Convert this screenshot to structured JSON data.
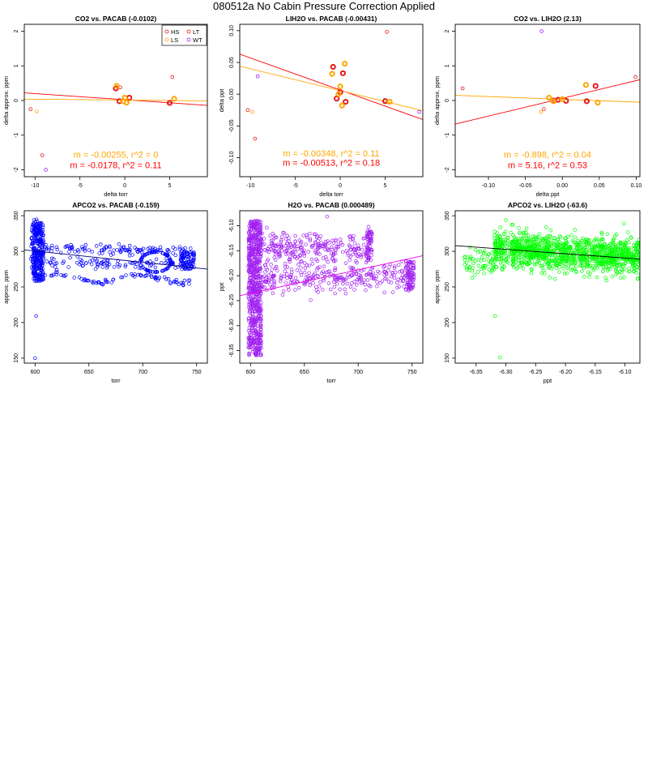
{
  "page": {
    "title": "080512a   No Cabin Pressure Correction Applied"
  },
  "colors": {
    "HS": "#e41a1c",
    "LT": "#e41a1c",
    "LS": "#ffa500",
    "WT": "#a020f0",
    "blue": "#0000ff",
    "purple": "#a020f0",
    "green": "#00ff00",
    "fitRed": "#ff0000",
    "fitOrange": "#ffa500"
  },
  "chart_data": [
    {
      "type": "scatter",
      "title": "CO2 vs. PACAB (-0.0102)",
      "xlabel": "delta torr",
      "ylabel": "delta approx. ppm",
      "xlim": [
        -11.2,
        9.2
      ],
      "ylim": [
        -2.2,
        2.2
      ],
      "xticks": [
        -10,
        -5,
        0,
        5
      ],
      "yticks": [
        -2,
        -1,
        0,
        1,
        2
      ],
      "legend": {
        "position": "top-right",
        "entries": [
          {
            "label": "HS",
            "color": "#e41a1c"
          },
          {
            "label": "LT",
            "color": "#e41a1c"
          },
          {
            "label": "LS",
            "color": "#ffa500"
          },
          {
            "label": "WT",
            "color": "#a020f0"
          }
        ]
      },
      "series": [
        {
          "name": "HS",
          "color": "#e41a1c",
          "thick": true,
          "points": [
            [
              -1.0,
              0.35
            ],
            [
              0.5,
              0.08
            ],
            [
              5.0,
              -0.07
            ],
            [
              -0.6,
              -0.02
            ]
          ]
        },
        {
          "name": "LT",
          "color": "#e41a1c",
          "thick": false,
          "points": [
            [
              -10.5,
              -0.25
            ],
            [
              -9.2,
              -1.58
            ],
            [
              -0.5,
              0.38
            ],
            [
              5.3,
              0.68
            ]
          ]
        },
        {
          "name": "LS",
          "color": "#ffa500",
          "thick": true,
          "points": [
            [
              -0.9,
              0.42
            ],
            [
              0.0,
              0.08
            ],
            [
              0.2,
              -0.06
            ],
            [
              5.5,
              0.05
            ],
            [
              -0.2,
              -0.02
            ]
          ]
        },
        {
          "name": "LS",
          "color": "#ffa500",
          "thick": false,
          "points": [
            [
              -9.8,
              -0.32
            ],
            [
              0.4,
              0.0
            ]
          ]
        },
        {
          "name": "WT",
          "color": "#a020f0",
          "thick": false,
          "points": [
            [
              -8.8,
              -2.0
            ]
          ]
        }
      ],
      "fits": [
        {
          "color": "#ff0000",
          "x": [
            -11.2,
            9.2
          ],
          "y": [
            0.22,
            -0.14
          ]
        },
        {
          "color": "#ffa500",
          "x": [
            -11.2,
            9.2
          ],
          "y": [
            0.04,
            -0.01
          ]
        }
      ],
      "annotations": [
        {
          "text": "m = -0.00255, r^2 = 0",
          "color": "#ffa500",
          "x": 0.5,
          "y": -1.65
        },
        {
          "text": "m = -0.0178, r^2 = 0.11",
          "color": "#ff0000",
          "x": 0.5,
          "y": -1.95
        }
      ]
    },
    {
      "type": "scatter",
      "title": "LIH2O vs. PACAB (-0.00431)",
      "xlabel": "delta torr",
      "ylabel": "delta ppt",
      "xlim": [
        -11.2,
        9.2
      ],
      "ylim": [
        -0.13,
        0.11
      ],
      "xticks": [
        -10,
        -5,
        0,
        5
      ],
      "yticks": [
        -0.1,
        -0.05,
        0.0,
        0.05,
        0.1
      ],
      "ytick_labels": [
        "-0.10",
        "-0.05",
        "0.00",
        "0.05",
        "0.10"
      ],
      "series": [
        {
          "name": "HS",
          "color": "#e41a1c",
          "thick": true,
          "points": [
            [
              -0.8,
              0.043
            ],
            [
              0.3,
              0.033
            ],
            [
              -0.4,
              -0.007
            ],
            [
              0.6,
              -0.012
            ],
            [
              5.0,
              -0.011
            ],
            [
              0.0,
              0.003
            ]
          ]
        },
        {
          "name": "LT",
          "color": "#e41a1c",
          "thick": false,
          "points": [
            [
              5.2,
              0.098
            ],
            [
              -10.3,
              -0.025
            ],
            [
              -9.5,
              -0.07
            ]
          ]
        },
        {
          "name": "LS",
          "color": "#ffa500",
          "thick": true,
          "points": [
            [
              0.5,
              0.048
            ],
            [
              -0.9,
              0.032
            ],
            [
              0.0,
              0.012
            ],
            [
              0.2,
              -0.018
            ],
            [
              5.5,
              -0.012
            ],
            [
              -0.2,
              0.0
            ]
          ]
        },
        {
          "name": "LS",
          "color": "#ffa500",
          "thick": false,
          "points": [
            [
              -9.8,
              -0.028
            ]
          ]
        },
        {
          "name": "WT",
          "color": "#a020f0",
          "thick": false,
          "points": [
            [
              -9.2,
              0.028
            ],
            [
              8.8,
              -0.028
            ]
          ]
        }
      ],
      "fits": [
        {
          "color": "#ff0000",
          "x": [
            -11.2,
            9.2
          ],
          "y": [
            0.063,
            -0.04
          ]
        },
        {
          "color": "#ffa500",
          "x": [
            -11.2,
            9.2
          ],
          "y": [
            0.044,
            -0.026
          ]
        }
      ],
      "annotations": [
        {
          "text": "m = -0.00348, r^2 = 0.11",
          "color": "#ffa500",
          "x": 0.5,
          "y": -0.098
        },
        {
          "text": "m = -0.00513, r^2 = 0.18",
          "color": "#ff0000",
          "x": 0.5,
          "y": -0.113
        }
      ]
    },
    {
      "type": "scatter",
      "title": "CO2 vs. LIH2O (2.13)",
      "xlabel": "delta ppt",
      "ylabel": "delta approx. ppm",
      "xlim": [
        -0.145,
        0.105
      ],
      "ylim": [
        -2.2,
        2.2
      ],
      "xticks": [
        -0.1,
        -0.05,
        0.0,
        0.05,
        0.1
      ],
      "xtick_labels": [
        "-0.10",
        "-0.05",
        "0.00",
        "0.05",
        "0.10"
      ],
      "yticks": [
        -2,
        -1,
        0,
        1,
        2
      ],
      "series": [
        {
          "name": "HS",
          "color": "#e41a1c",
          "thick": true,
          "points": [
            [
              -0.012,
              0.0
            ],
            [
              0.045,
              0.42
            ],
            [
              0.033,
              -0.02
            ],
            [
              0.005,
              -0.01
            ],
            [
              -0.006,
              0.02
            ]
          ]
        },
        {
          "name": "LT",
          "color": "#e41a1c",
          "thick": false,
          "points": [
            [
              -0.135,
              0.35
            ],
            [
              -0.025,
              -0.25
            ],
            [
              0.099,
              0.68
            ]
          ]
        },
        {
          "name": "LS",
          "color": "#ffa500",
          "thick": true,
          "points": [
            [
              0.032,
              0.45
            ],
            [
              -0.018,
              0.08
            ],
            [
              0.048,
              -0.06
            ],
            [
              0.0,
              0.04
            ],
            [
              -0.012,
              -0.02
            ]
          ]
        },
        {
          "name": "LS",
          "color": "#ffa500",
          "thick": false,
          "points": [
            [
              -0.029,
              -0.33
            ]
          ]
        },
        {
          "name": "WT",
          "color": "#a020f0",
          "thick": false,
          "points": [
            [
              -0.028,
              2.0
            ]
          ]
        }
      ],
      "fits": [
        {
          "color": "#ff0000",
          "x": [
            -0.145,
            0.105
          ],
          "y": [
            -0.68,
            0.6
          ]
        },
        {
          "color": "#ffa500",
          "x": [
            -0.145,
            0.105
          ],
          "y": [
            0.15,
            -0.05
          ]
        }
      ],
      "annotations": [
        {
          "text": "m = -0.898, r^2 = 0.04",
          "color": "#ffa500",
          "x": 0.5,
          "y": -1.65
        },
        {
          "text": "m = 5.16, r^2 = 0.53",
          "color": "#ff0000",
          "x": 0.5,
          "y": -1.95
        }
      ]
    },
    {
      "type": "scatter",
      "title": "APCO2 vs. PACAB (-0.159)",
      "xlabel": "torr",
      "ylabel": "approx. ppm",
      "xlim": [
        590,
        760
      ],
      "ylim": [
        143,
        357
      ],
      "xticks": [
        600,
        650,
        700,
        750
      ],
      "yticks": [
        150,
        200,
        250,
        300,
        350
      ],
      "color": "#0000ff",
      "outliers": [
        [
          601,
          209
        ],
        [
          600,
          150
        ]
      ],
      "fit": {
        "color": "#000080",
        "x": [
          590,
          760
        ],
        "y": [
          302,
          275
        ]
      }
    },
    {
      "type": "scatter",
      "title": "H2O vs. PACAB (0.000489)",
      "xlabel": "torr",
      "ylabel": "ppt",
      "xlim": [
        590,
        760
      ],
      "ylim": [
        -6.375,
        -6.07
      ],
      "xticks": [
        600,
        650,
        700,
        750
      ],
      "yticks": [
        -6.35,
        -6.3,
        -6.25,
        -6.2,
        -6.15,
        -6.1
      ],
      "ytick_labels": [
        "-6.35",
        "-6.30",
        "-6.25",
        "-6.20",
        "-6.15",
        "-6.10"
      ],
      "color": "#a020f0",
      "fit": {
        "color": "#ee00ee",
        "x": [
          590,
          760
        ],
        "y": [
          -6.24,
          -6.16
        ]
      }
    },
    {
      "type": "scatter",
      "title": "APCO2 vs. LIH2O (-63.6)",
      "xlabel": "ppt",
      "ylabel": "approx. ppm",
      "xlim": [
        -6.385,
        -6.075
      ],
      "ylim": [
        143,
        357
      ],
      "xticks": [
        -6.35,
        -6.3,
        -6.25,
        -6.2,
        -6.15,
        -6.1
      ],
      "xtick_labels": [
        "-6.35",
        "-6.30",
        "-6.25",
        "-6.20",
        "-6.15",
        "-6.10"
      ],
      "yticks": [
        150,
        200,
        250,
        300,
        350
      ],
      "color": "#00ff00",
      "outliers": [
        [
          -6.318,
          209
        ],
        [
          -6.31,
          151
        ]
      ],
      "fit": {
        "color": "#000000",
        "x": [
          -6.385,
          -6.075
        ],
        "y": [
          308,
          289
        ]
      }
    }
  ]
}
